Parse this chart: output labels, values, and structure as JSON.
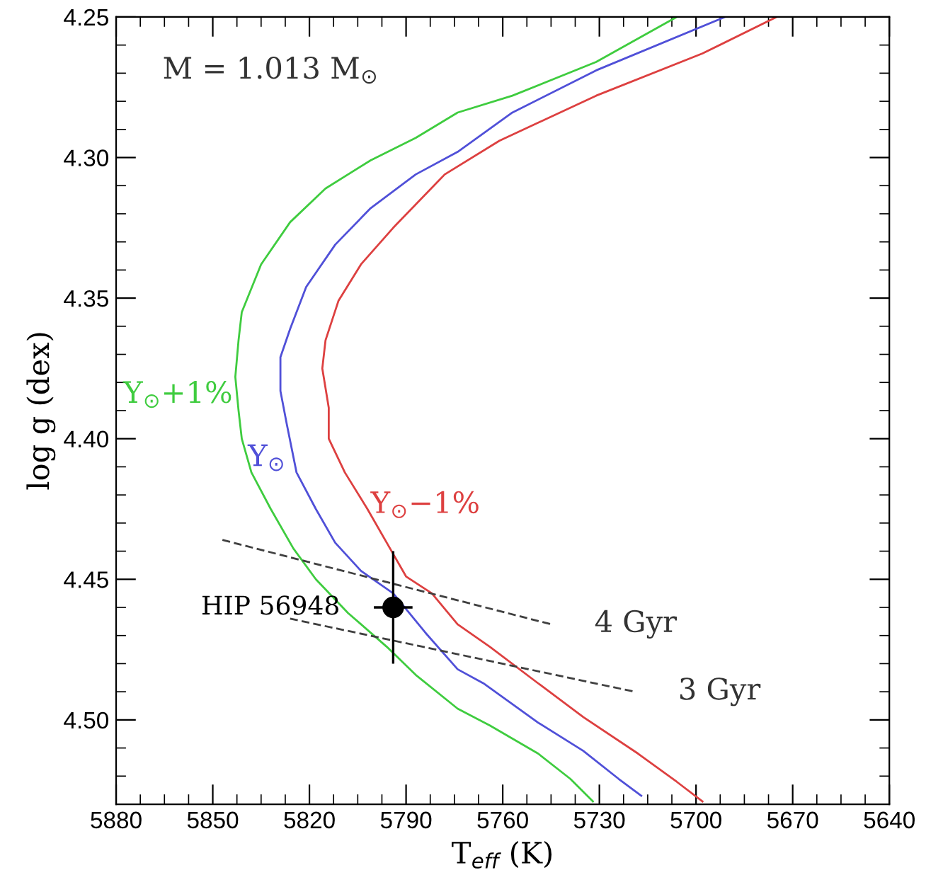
{
  "chart_data": {
    "type": "line",
    "xlabel": "T$_{eff}$ (K)",
    "ylabel": "log g (dex)",
    "annotations": [
      "M = 1.013 M$_{⊙}$"
    ],
    "xlim": [
      5880,
      5640
    ],
    "xticks": [
      5880,
      5850,
      5820,
      5790,
      5760,
      5730,
      5700,
      5670,
      5640
    ],
    "ylim": [
      4.53,
      4.25
    ],
    "yticks": [
      4.25,
      {
        "value": 4.3,
        "label": "4.30"
      },
      4.35,
      {
        "value": 4.4,
        "label": "4.40"
      },
      4.45,
      {
        "value": 4.5,
        "label": "4.50"
      }
    ],
    "legend": false,
    "grid": false,
    "line_style": "solid",
    "marker": "none",
    "series": [
      {
        "name": "Y$_{⊙}$+1%",
        "color": "#3fcc3f",
        "x": [
          5706,
          5731,
          5757,
          5774,
          5787,
          5801,
          5815,
          5826,
          5835,
          5841,
          5842,
          5843,
          5842,
          5841,
          5838,
          5832,
          5825,
          5818,
          5808,
          5796,
          5787,
          5774,
          5764,
          5749,
          5739,
          5732
        ],
        "values": [
          4.25,
          4.266,
          4.278,
          4.284,
          4.293,
          4.301,
          4.311,
          4.323,
          4.338,
          4.355,
          4.365,
          4.378,
          4.39,
          4.4,
          4.412,
          4.425,
          4.439,
          4.45,
          4.462,
          4.474,
          4.484,
          4.496,
          4.502,
          4.512,
          4.521,
          4.529
        ]
      },
      {
        "name": "Y$_{⊙}$",
        "color": "#5050d8",
        "x": [
          5691,
          5731,
          5757,
          5774,
          5787,
          5801,
          5812,
          5821,
          5826,
          5829,
          5829,
          5827,
          5824,
          5818,
          5812,
          5804,
          5794,
          5784,
          5774,
          5766,
          5749,
          5735,
          5724,
          5717
        ],
        "values": [
          4.25,
          4.269,
          4.284,
          4.298,
          4.306,
          4.318,
          4.331,
          4.346,
          4.361,
          4.371,
          4.383,
          4.395,
          4.412,
          4.425,
          4.437,
          4.447,
          4.455,
          4.469,
          4.482,
          4.487,
          4.501,
          4.511,
          4.521,
          4.527
        ]
      },
      {
        "name": "Y$_{⊙}$−1%",
        "color": "#dd4040",
        "x": [
          5675,
          5698,
          5731,
          5761,
          5778,
          5794,
          5804,
          5811,
          5815,
          5816,
          5814,
          5814,
          5809,
          5802,
          5796,
          5790,
          5782,
          5774,
          5764,
          5749,
          5735,
          5718,
          5706,
          5698
        ],
        "values": [
          4.25,
          4.263,
          4.278,
          4.294,
          4.306,
          4.325,
          4.338,
          4.351,
          4.365,
          4.375,
          4.389,
          4.4,
          4.412,
          4.425,
          4.437,
          4.449,
          4.455,
          4.466,
          4.474,
          4.487,
          4.499,
          4.512,
          4.522,
          4.529
        ]
      },
      {
        "name": "4 Gyr",
        "color": "#404040",
        "line_style": "dashed",
        "x": [
          5847,
          5745
        ],
        "values": [
          4.436,
          4.466
        ]
      },
      {
        "name": "3 Gyr",
        "color": "#404040",
        "line_style": "dashed",
        "x": [
          5826,
          5719
        ],
        "values": [
          4.464,
          4.49
        ]
      },
      {
        "name": "HIP 56948",
        "type": "scatter",
        "marker": "circle",
        "color": "#000000",
        "x": [
          5794
        ],
        "values": [
          4.46
        ],
        "errors": [
          0.02
        ],
        "xerrors": [
          6
        ]
      }
    ]
  }
}
